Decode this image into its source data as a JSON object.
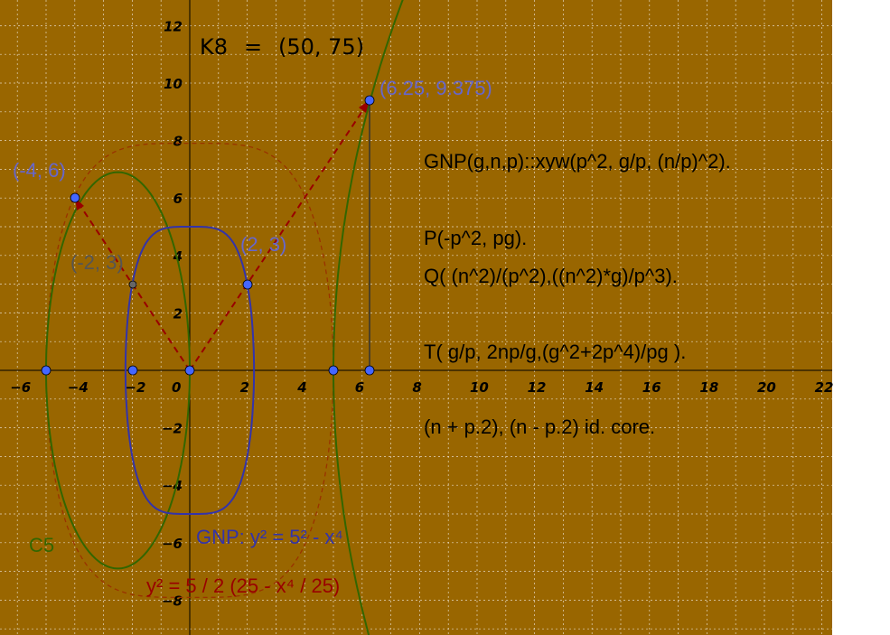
{
  "colors": {
    "background": "#996600",
    "grid": "#ffffff",
    "axis": "#000000",
    "curve_c5": "#336600",
    "curve_gnp": "#3333aa",
    "curve_dashed": "#993300",
    "dashed_lines": "#990000",
    "point_fill": "#4466ff",
    "point_gray": "#666666",
    "label_blue": "#6666cc",
    "label_gray": "#555555"
  },
  "axes": {
    "x_ticks": [
      "-6",
      "-4",
      "-2",
      "0",
      "2",
      "4",
      "6",
      "8",
      "10",
      "12",
      "14",
      "16",
      "18",
      "20",
      "22"
    ],
    "y_ticks": [
      "12",
      "10",
      "8",
      "6",
      "4",
      "2",
      "-2",
      "-4",
      "-6",
      "-8"
    ]
  },
  "header": {
    "k8_label": "K8",
    "k8_eq": "=",
    "k8_value": "(50, 75)"
  },
  "points": {
    "p_625": "(6.25, 9.375)",
    "p_m46": "(-4, 6)",
    "p_m23": "(-2, 3)",
    "p_23": "(2, 3)"
  },
  "text_block": {
    "line1": "GNP(g,n,p)::xyw(p^2, g/p, (n/p)^2).",
    "line2": "P(-p^2, pg).",
    "line3": "Q( (n^2)/(p^2),((n^2)*g)/p^3).",
    "line4": "T( g/p, 2np/g,(g^2+2p^4)/pg ).",
    "line5": "(n + p.2), (n - p.2) id. core."
  },
  "curve_labels": {
    "c5": "C5",
    "gnp": "GNP: y² = 5² - x⁴",
    "dashed": "y² = 5 / 2 (25 - x⁴ / 25)"
  }
}
